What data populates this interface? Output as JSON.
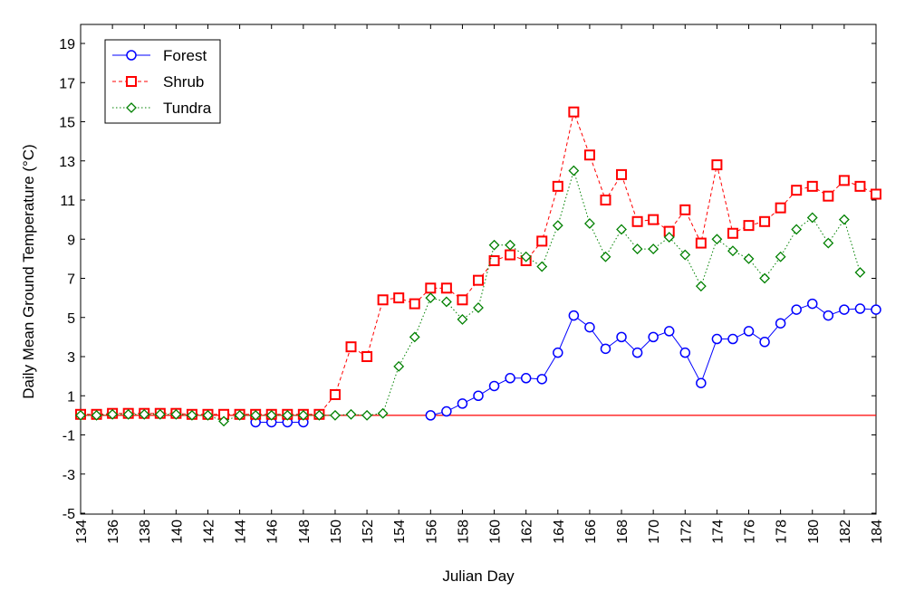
{
  "chart_data": {
    "type": "line",
    "title": "",
    "xlabel": "Julian Day",
    "ylabel": "Daily Mean Ground Temperature (°C)",
    "ylabel_parts": {
      "before": "Daily Mean Ground Temperature (",
      "sup": "o",
      "after": "C)"
    },
    "xlim": [
      134,
      184
    ],
    "ylim": [
      -5,
      20
    ],
    "xticks": [
      134,
      136,
      138,
      140,
      142,
      144,
      146,
      148,
      150,
      152,
      154,
      156,
      158,
      160,
      162,
      164,
      166,
      168,
      170,
      172,
      174,
      176,
      178,
      180,
      182,
      184
    ],
    "yticks": [
      -5,
      -3,
      -1,
      1,
      3,
      5,
      7,
      9,
      11,
      13,
      15,
      17,
      19
    ],
    "grid": false,
    "legend_placement": "top-left",
    "reference_line": {
      "y": 0,
      "color": "#ff0000"
    },
    "series": [
      {
        "name": "Forest",
        "color": "#0000ff",
        "marker": "circle",
        "line": "solid",
        "x": [
          145,
          146,
          147,
          148,
          null,
          156,
          157,
          158,
          159,
          160,
          161,
          162,
          163,
          164,
          165,
          166,
          167,
          168,
          169,
          170,
          171,
          172,
          173,
          174,
          175,
          176,
          177,
          178,
          179,
          180,
          181,
          182,
          183,
          184
        ],
        "y": [
          -0.35,
          -0.35,
          -0.35,
          -0.35,
          null,
          0,
          0.2,
          0.6,
          1.0,
          1.5,
          1.9,
          1.9,
          1.85,
          3.2,
          5.1,
          4.5,
          3.4,
          4.0,
          3.2,
          4.0,
          4.3,
          3.2,
          1.65,
          3.9,
          3.9,
          4.3,
          3.75,
          4.7,
          5.4,
          5.7,
          5.1,
          5.4,
          5.45,
          5.4
        ]
      },
      {
        "name": "Shrub",
        "color": "#ff0000",
        "marker": "square",
        "line": "dashed",
        "x": [
          134,
          135,
          136,
          137,
          138,
          139,
          140,
          141,
          142,
          143,
          144,
          145,
          146,
          147,
          148,
          149,
          150,
          151,
          152,
          153,
          154,
          155,
          156,
          157,
          158,
          159,
          160,
          161,
          162,
          163,
          164,
          165,
          166,
          167,
          168,
          169,
          170,
          171,
          172,
          173,
          174,
          175,
          176,
          177,
          178,
          179,
          180,
          181,
          182,
          183,
          184
        ],
        "y": [
          0.05,
          0.05,
          0.1,
          0.1,
          0.1,
          0.1,
          0.1,
          0.05,
          0.05,
          0.05,
          0.05,
          0.05,
          0.05,
          0.05,
          0.05,
          0.05,
          1.06,
          3.5,
          3.0,
          5.9,
          6.0,
          5.7,
          6.5,
          6.5,
          5.9,
          6.9,
          7.9,
          8.2,
          7.9,
          8.9,
          11.7,
          15.5,
          13.3,
          11.0,
          12.3,
          9.9,
          10.0,
          9.4,
          10.5,
          8.8,
          12.8,
          9.3,
          9.7,
          9.9,
          10.6,
          11.5,
          11.7,
          11.2,
          12.0,
          11.7,
          11.3
        ]
      },
      {
        "name": "Tundra",
        "color": "#008000",
        "marker": "diamond",
        "line": "dotted",
        "x": [
          134,
          135,
          136,
          137,
          138,
          139,
          140,
          141,
          142,
          143,
          144,
          145,
          146,
          147,
          148,
          149,
          150,
          151,
          152,
          153,
          154,
          155,
          156,
          157,
          158,
          159,
          160,
          161,
          162,
          163,
          164,
          165,
          166,
          167,
          168,
          169,
          170,
          171,
          172,
          173,
          174,
          175,
          176,
          177,
          178,
          179,
          180,
          181,
          182,
          183
        ],
        "y": [
          0,
          0,
          0.05,
          0.05,
          0.05,
          0.05,
          0.05,
          0,
          0,
          -0.3,
          0,
          0,
          0,
          0,
          0,
          0,
          0,
          0.05,
          0,
          0.1,
          2.5,
          4.0,
          6.0,
          5.8,
          4.9,
          5.5,
          8.7,
          8.7,
          8.1,
          7.6,
          9.7,
          12.5,
          9.8,
          8.1,
          9.5,
          8.5,
          8.5,
          9.1,
          8.2,
          6.6,
          9.0,
          8.4,
          8.0,
          7.0,
          8.1,
          9.5,
          10.1,
          8.8,
          10.0,
          7.3
        ]
      }
    ]
  }
}
